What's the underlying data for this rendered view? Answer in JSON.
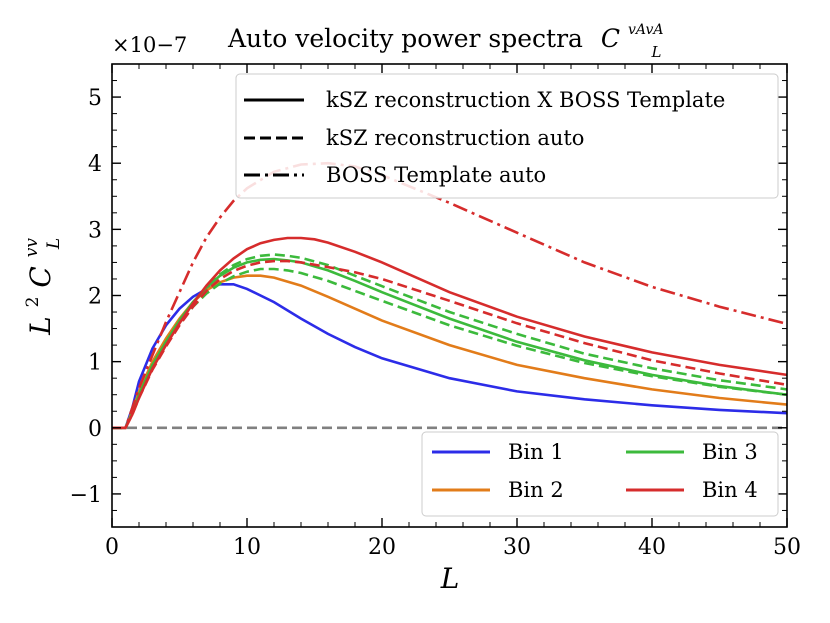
{
  "chart_data": {
    "type": "line",
    "title": "Auto velocity power spectra",
    "title_math": "C",
    "title_math_sub": "L",
    "title_math_sup": "vAvA",
    "xlabel": "L",
    "ylabel": "L",
    "ylabel_sup": "2",
    "ylabel_c": "C",
    "ylabel_c_sup": "vv",
    "ylabel_c_sub": "L",
    "multiplier": "×10−7",
    "xlim": [
      0,
      50
    ],
    "ylim": [
      -1.5,
      5.5
    ],
    "xticks": [
      0,
      10,
      20,
      30,
      40,
      50
    ],
    "xtick_labels": [
      "0",
      "10",
      "20",
      "30",
      "40",
      "50"
    ],
    "yticks": [
      -1,
      0,
      1,
      2,
      3,
      4,
      5
    ],
    "ytick_labels": [
      "−1",
      "0",
      "1",
      "2",
      "3",
      "4",
      "5"
    ],
    "style_legend": [
      {
        "label": "kSZ reconstruction X BOSS Template",
        "dash": "solid"
      },
      {
        "label": "kSZ reconstruction auto",
        "dash": "dashed"
      },
      {
        "label": "BOSS Template auto",
        "dash": "dashdot"
      }
    ],
    "bin_legend": [
      {
        "label": "Bin 1",
        "color": "#2c2ce8"
      },
      {
        "label": "Bin 2",
        "color": "#e27c1a"
      },
      {
        "label": "Bin 3",
        "color": "#3cba3c"
      },
      {
        "label": "Bin 4",
        "color": "#d62c2c"
      }
    ],
    "zero_line": {
      "y": 0,
      "color": "#808080"
    },
    "series": [
      {
        "name": "Bin 1 kSZ x BOSS",
        "color": "#2c2ce8",
        "dash": "solid",
        "x": [
          0,
          1,
          1.5,
          2,
          3,
          4,
          5,
          6,
          7,
          8,
          9,
          10,
          12,
          14,
          16,
          18,
          20,
          25,
          30,
          35,
          40,
          45,
          50
        ],
        "y": [
          0,
          0,
          0.3,
          0.7,
          1.2,
          1.55,
          1.8,
          1.98,
          2.1,
          2.17,
          2.17,
          2.1,
          1.9,
          1.65,
          1.42,
          1.22,
          1.05,
          0.75,
          0.55,
          0.43,
          0.34,
          0.27,
          0.22
        ]
      },
      {
        "name": "Bin 2 kSZ x BOSS",
        "color": "#e27c1a",
        "dash": "solid",
        "x": [
          0,
          1,
          1.5,
          2,
          3,
          4,
          5,
          6,
          7,
          8,
          9,
          10,
          11,
          12,
          14,
          16,
          18,
          20,
          25,
          30,
          35,
          40,
          45,
          50
        ],
        "y": [
          0,
          0,
          0.25,
          0.55,
          1.0,
          1.35,
          1.65,
          1.9,
          2.08,
          2.2,
          2.27,
          2.3,
          2.3,
          2.27,
          2.15,
          1.98,
          1.8,
          1.62,
          1.25,
          0.95,
          0.75,
          0.58,
          0.45,
          0.35
        ]
      },
      {
        "name": "Bin 3 kSZ x BOSS",
        "color": "#3cba3c",
        "dash": "solid",
        "x": [
          0,
          1,
          1.5,
          2,
          3,
          4,
          5,
          6,
          7,
          8,
          9,
          10,
          11,
          12,
          13,
          14,
          16,
          18,
          20,
          25,
          30,
          35,
          40,
          45,
          50
        ],
        "y": [
          0,
          0,
          0.22,
          0.5,
          0.95,
          1.3,
          1.62,
          1.9,
          2.12,
          2.3,
          2.42,
          2.5,
          2.54,
          2.55,
          2.53,
          2.5,
          2.38,
          2.22,
          2.05,
          1.65,
          1.3,
          1.02,
          0.8,
          0.63,
          0.5
        ]
      },
      {
        "name": "Bin 3 kSZ auto A",
        "color": "#3cba3c",
        "dash": "dashed",
        "x": [
          0,
          1,
          1.5,
          2,
          3,
          4,
          5,
          6,
          7,
          8,
          9,
          10,
          11,
          12,
          13,
          14,
          16,
          18,
          20,
          25,
          30,
          35,
          40,
          45,
          50
        ],
        "y": [
          0,
          0,
          0.22,
          0.5,
          0.95,
          1.3,
          1.62,
          1.9,
          2.12,
          2.32,
          2.46,
          2.55,
          2.6,
          2.62,
          2.6,
          2.57,
          2.46,
          2.3,
          2.14,
          1.75,
          1.42,
          1.12,
          0.9,
          0.72,
          0.58
        ]
      },
      {
        "name": "Bin 3 kSZ auto B",
        "color": "#3cba3c",
        "dash": "dashed",
        "x": [
          0,
          1,
          1.5,
          2,
          3,
          4,
          5,
          6,
          7,
          8,
          9,
          10,
          11,
          12,
          13,
          14,
          16,
          18,
          20,
          25,
          30,
          35,
          40,
          45,
          50
        ],
        "y": [
          0,
          0,
          0.22,
          0.48,
          0.92,
          1.27,
          1.57,
          1.83,
          2.03,
          2.18,
          2.29,
          2.36,
          2.4,
          2.4,
          2.38,
          2.34,
          2.22,
          2.07,
          1.92,
          1.55,
          1.24,
          0.98,
          0.78,
          0.62,
          0.5
        ]
      },
      {
        "name": "Bin 4 kSZ x BOSS",
        "color": "#d62c2c",
        "dash": "solid",
        "x": [
          0,
          1,
          1.5,
          2,
          3,
          4,
          5,
          6,
          7,
          8,
          9,
          10,
          11,
          12,
          13,
          14,
          15,
          16,
          18,
          20,
          25,
          30,
          35,
          40,
          45,
          50
        ],
        "y": [
          0,
          0,
          0.2,
          0.45,
          0.9,
          1.25,
          1.58,
          1.88,
          2.15,
          2.38,
          2.56,
          2.7,
          2.79,
          2.84,
          2.87,
          2.87,
          2.85,
          2.8,
          2.66,
          2.5,
          2.05,
          1.68,
          1.38,
          1.14,
          0.95,
          0.8
        ]
      },
      {
        "name": "Bin 4 kSZ auto",
        "color": "#d62c2c",
        "dash": "dashed",
        "x": [
          0,
          1,
          1.5,
          2,
          3,
          4,
          5,
          6,
          7,
          8,
          9,
          10,
          11,
          12,
          13,
          14,
          16,
          18,
          20,
          25,
          30,
          35,
          40,
          45,
          50
        ],
        "y": [
          0,
          0,
          0.2,
          0.45,
          0.88,
          1.23,
          1.55,
          1.83,
          2.07,
          2.25,
          2.37,
          2.45,
          2.5,
          2.52,
          2.52,
          2.5,
          2.43,
          2.35,
          2.25,
          1.92,
          1.58,
          1.28,
          1.02,
          0.82,
          0.65
        ]
      },
      {
        "name": "Bin 4 BOSS auto",
        "color": "#d62c2c",
        "dash": "dashdot",
        "x": [
          0,
          1,
          1.5,
          2,
          3,
          4,
          5,
          6,
          7,
          8,
          9,
          10,
          12,
          14,
          16,
          18,
          20,
          25,
          30,
          35,
          40,
          45,
          50
        ],
        "y": [
          0,
          0,
          0.3,
          0.6,
          1.1,
          1.6,
          2.05,
          2.5,
          2.88,
          3.18,
          3.43,
          3.62,
          3.87,
          3.98,
          4.0,
          3.95,
          3.82,
          3.4,
          2.95,
          2.5,
          2.13,
          1.83,
          1.57
        ]
      }
    ]
  }
}
